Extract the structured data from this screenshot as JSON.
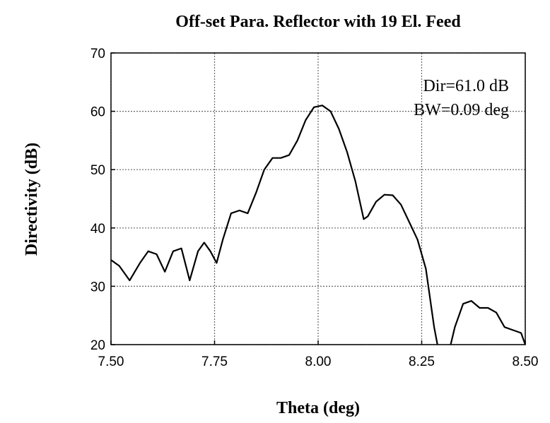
{
  "chart_data": {
    "type": "line",
    "title": "Off-set Para. Reflector with 19 El. Feed",
    "xlabel": "Theta (deg)",
    "ylabel": "Directivity (dB)",
    "annotations": [
      "Dir=61.0 dB",
      "BW=0.09 deg"
    ],
    "xlim": [
      7.5,
      8.5
    ],
    "ylim": [
      20,
      70
    ],
    "xticks": [
      {
        "value": 7.5,
        "label": "7.50"
      },
      {
        "value": 7.75,
        "label": "7.75"
      },
      {
        "value": 8,
        "label": "8.00"
      },
      {
        "value": 8.25,
        "label": "8.25"
      },
      {
        "value": 8.5,
        "label": "8.50"
      }
    ],
    "yticks": [
      20,
      30,
      40,
      50,
      60,
      70
    ],
    "grid": true,
    "series": [
      {
        "color": "#000000",
        "x": [
          7.5,
          7.52,
          7.545,
          7.57,
          7.59,
          7.61,
          7.63,
          7.65,
          7.67,
          7.69,
          7.71,
          7.725,
          7.74,
          7.755,
          7.77,
          7.79,
          7.81,
          7.83,
          7.85,
          7.87,
          7.89,
          7.91,
          7.93,
          7.95,
          7.97,
          7.99,
          8.01,
          8.03,
          8.05,
          8.07,
          8.09,
          8.11,
          8.12,
          8.14,
          8.16,
          8.18,
          8.2,
          8.22,
          8.24,
          8.26,
          8.28,
          8.288,
          8.3,
          8.32,
          8.33,
          8.35,
          8.37,
          8.39,
          8.41,
          8.43,
          8.45,
          8.47,
          8.49,
          8.5
        ],
        "values": [
          34.5,
          33.5,
          31,
          34,
          36,
          35.5,
          32.5,
          36,
          36.5,
          31,
          36,
          37.5,
          36,
          34,
          38,
          42.5,
          43,
          42.5,
          46,
          50,
          52,
          52,
          52.5,
          55,
          58.5,
          60.7,
          61,
          60,
          57,
          53,
          48,
          41.5,
          42,
          44.5,
          45.7,
          45.6,
          44,
          41,
          38,
          33,
          23,
          20,
          null,
          20,
          23,
          27,
          27.5,
          26.3,
          26.3,
          25.5,
          23,
          22.5,
          22,
          20
        ]
      }
    ]
  }
}
